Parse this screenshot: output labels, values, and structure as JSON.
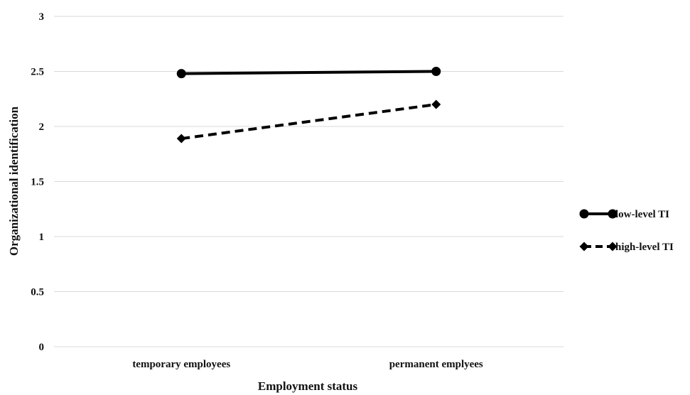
{
  "chart_data": {
    "type": "line",
    "categories": [
      "temporary employees",
      "permanent emplyees"
    ],
    "series": [
      {
        "name": "low-level TI",
        "values": [
          2.48,
          2.5
        ],
        "line": "solid",
        "marker": "circle",
        "color": "#000000"
      },
      {
        "name": "high-level TI",
        "values": [
          1.89,
          2.2
        ],
        "line": "dashed",
        "marker": "diamond",
        "color": "#000000"
      }
    ],
    "y_ticks": [
      "0",
      "0.5",
      "1",
      "1.5",
      "2",
      "2.5",
      "3"
    ],
    "ylim": [
      0,
      3
    ],
    "xlabel": "Employment status",
    "ylabel": "Organizational identification",
    "grid": true,
    "legend_position": "right"
  }
}
